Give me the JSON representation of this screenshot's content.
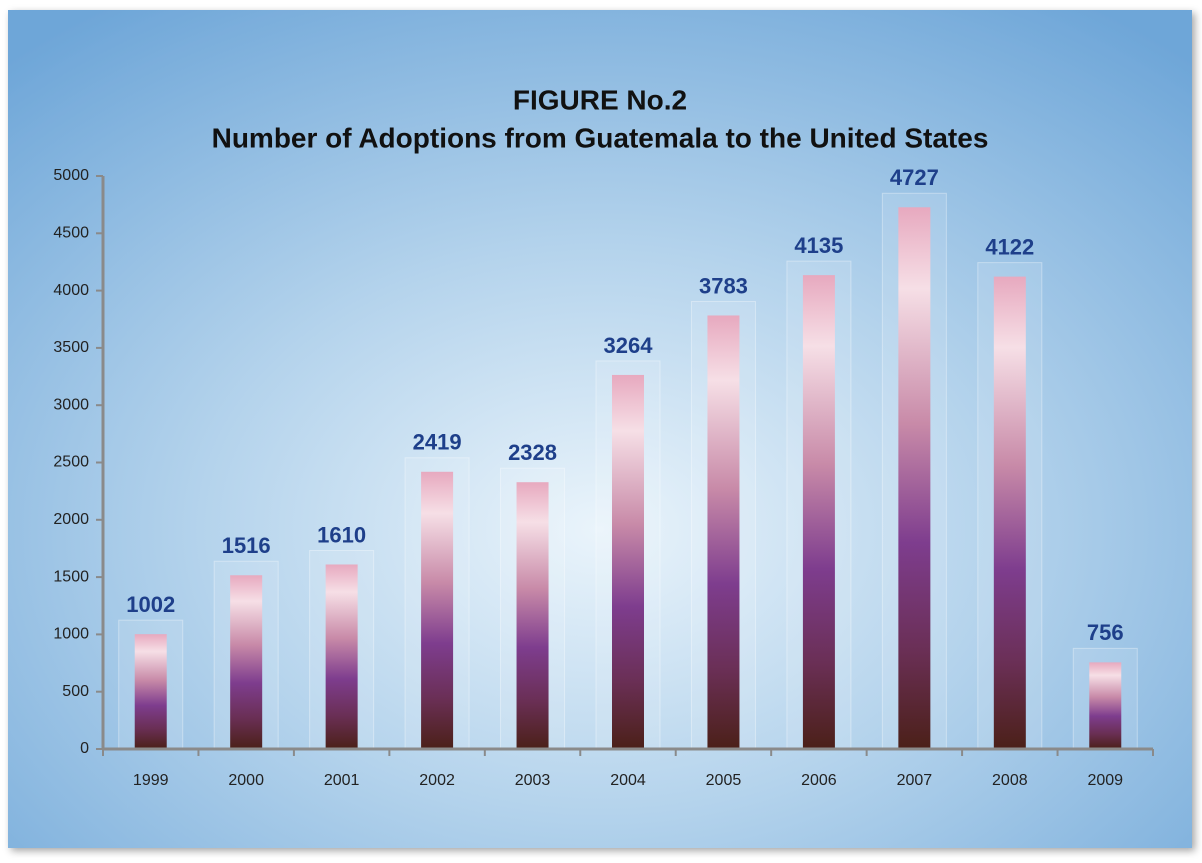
{
  "chart_data": {
    "type": "bar",
    "title": "FIGURE No.2",
    "subtitle": "Number of Adoptions from Guatemala to the United States",
    "categories": [
      "1999",
      "2000",
      "2001",
      "2002",
      "2003",
      "2004",
      "2005",
      "2006",
      "2007",
      "2008",
      "2009"
    ],
    "values": [
      1002,
      1516,
      1610,
      2419,
      2328,
      3264,
      3783,
      4135,
      4727,
      4122,
      756
    ],
    "ylim": [
      0,
      5000
    ],
    "yticks": [
      0,
      500,
      1000,
      1500,
      2000,
      2500,
      3000,
      3500,
      4000,
      4500,
      5000
    ],
    "grid": false
  }
}
